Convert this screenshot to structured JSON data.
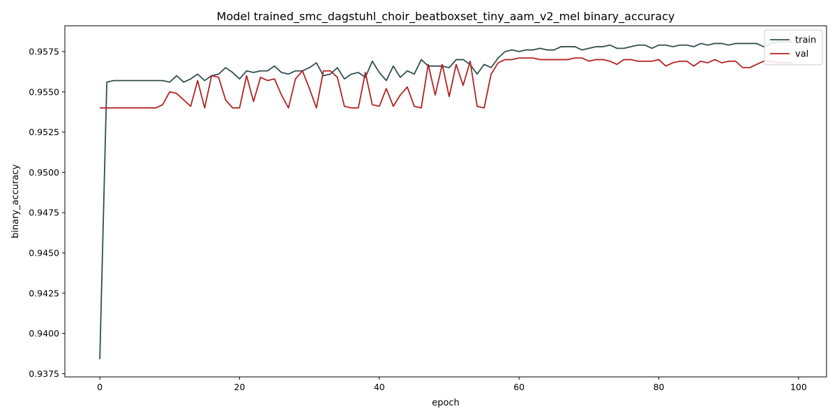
{
  "chart_data": {
    "type": "line",
    "title": "Model trained_smc_dagstuhl_choir_beatboxset_tiny_aam_v2_mel binary_accuracy",
    "xlabel": "epoch",
    "ylabel": "binary_accuracy",
    "xlim": [
      -5,
      104
    ],
    "ylim": [
      0.9373,
      0.9591
    ],
    "xticks": [
      0,
      20,
      40,
      60,
      80,
      100
    ],
    "yticks": [
      0.9375,
      0.94,
      0.9425,
      0.945,
      0.9475,
      0.95,
      0.9525,
      0.955,
      0.9575
    ],
    "ytick_labels": [
      "0.9375",
      "0.9400",
      "0.9425",
      "0.9450",
      "0.9475",
      "0.9500",
      "0.9525",
      "0.9550",
      "0.9575"
    ],
    "xtick_labels": [
      "0",
      "20",
      "40",
      "60",
      "80",
      "100"
    ],
    "grid": false,
    "legend": "top-right",
    "series": [
      {
        "name": "train",
        "color": "#2f4f4f",
        "x": [
          0,
          1,
          2,
          3,
          4,
          5,
          6,
          7,
          8,
          9,
          10,
          11,
          12,
          13,
          14,
          15,
          16,
          17,
          18,
          19,
          20,
          21,
          22,
          23,
          24,
          25,
          26,
          27,
          28,
          29,
          30,
          31,
          32,
          33,
          34,
          35,
          36,
          37,
          38,
          39,
          40,
          41,
          42,
          43,
          44,
          45,
          46,
          47,
          48,
          49,
          50,
          51,
          52,
          53,
          54,
          55,
          56,
          57,
          58,
          59,
          60,
          61,
          62,
          63,
          64,
          65,
          66,
          67,
          68,
          69,
          70,
          71,
          72,
          73,
          74,
          75,
          76,
          77,
          78,
          79,
          80,
          81,
          82,
          83,
          84,
          85,
          86,
          87,
          88,
          89,
          90,
          91,
          92,
          93,
          94,
          95,
          96,
          97,
          98,
          99
        ],
        "values": [
          0.9384,
          0.9556,
          0.9557,
          0.9557,
          0.9557,
          0.9557,
          0.9557,
          0.9557,
          0.9557,
          0.9557,
          0.9556,
          0.956,
          0.9556,
          0.9558,
          0.9561,
          0.9557,
          0.956,
          0.9561,
          0.9565,
          0.9562,
          0.9558,
          0.9563,
          0.9562,
          0.9563,
          0.9563,
          0.9566,
          0.9562,
          0.9561,
          0.9563,
          0.9563,
          0.9565,
          0.9568,
          0.956,
          0.9561,
          0.9565,
          0.9558,
          0.9561,
          0.9562,
          0.9559,
          0.9569,
          0.9562,
          0.9557,
          0.9566,
          0.9559,
          0.9563,
          0.9561,
          0.957,
          0.9566,
          0.9566,
          0.9566,
          0.9565,
          0.957,
          0.957,
          0.9567,
          0.9561,
          0.9567,
          0.9565,
          0.9571,
          0.9575,
          0.9576,
          0.9575,
          0.9576,
          0.9576,
          0.9577,
          0.9576,
          0.9576,
          0.9578,
          0.9578,
          0.9578,
          0.9576,
          0.9577,
          0.9578,
          0.9578,
          0.9579,
          0.9577,
          0.9577,
          0.9578,
          0.9579,
          0.9579,
          0.9577,
          0.9579,
          0.9579,
          0.9578,
          0.9579,
          0.9579,
          0.9578,
          0.958,
          0.9579,
          0.958,
          0.958,
          0.9579,
          0.958,
          0.958,
          0.958,
          0.958,
          0.9578,
          0.958,
          0.9581,
          0.9581,
          0.9581
        ]
      },
      {
        "name": "val",
        "color": "#b22222",
        "x": [
          0,
          1,
          2,
          3,
          4,
          5,
          6,
          7,
          8,
          9,
          10,
          11,
          12,
          13,
          14,
          15,
          16,
          17,
          18,
          19,
          20,
          21,
          22,
          23,
          24,
          25,
          26,
          27,
          28,
          29,
          30,
          31,
          32,
          33,
          34,
          35,
          36,
          37,
          38,
          39,
          40,
          41,
          42,
          43,
          44,
          45,
          46,
          47,
          48,
          49,
          50,
          51,
          52,
          53,
          54,
          55,
          56,
          57,
          58,
          59,
          60,
          61,
          62,
          63,
          64,
          65,
          66,
          67,
          68,
          69,
          70,
          71,
          72,
          73,
          74,
          75,
          76,
          77,
          78,
          79,
          80,
          81,
          82,
          83,
          84,
          85,
          86,
          87,
          88,
          89,
          90,
          91,
          92,
          93,
          94,
          95,
          96,
          97,
          98,
          99
        ],
        "values": [
          0.954,
          0.954,
          0.954,
          0.954,
          0.954,
          0.954,
          0.954,
          0.954,
          0.954,
          0.9542,
          0.955,
          0.9549,
          0.9545,
          0.9541,
          0.9557,
          0.954,
          0.956,
          0.9559,
          0.9545,
          0.954,
          0.954,
          0.956,
          0.9544,
          0.9559,
          0.9557,
          0.9558,
          0.9548,
          0.954,
          0.9558,
          0.9563,
          0.9552,
          0.954,
          0.9563,
          0.9563,
          0.9559,
          0.9541,
          0.954,
          0.954,
          0.9562,
          0.9542,
          0.9541,
          0.9552,
          0.9541,
          0.9548,
          0.9553,
          0.9541,
          0.954,
          0.9567,
          0.9548,
          0.9567,
          0.9547,
          0.9567,
          0.9554,
          0.9569,
          0.9541,
          0.954,
          0.9561,
          0.9568,
          0.957,
          0.957,
          0.9571,
          0.9571,
          0.9571,
          0.957,
          0.957,
          0.957,
          0.957,
          0.957,
          0.9571,
          0.9571,
          0.9569,
          0.957,
          0.957,
          0.9569,
          0.9567,
          0.957,
          0.957,
          0.9569,
          0.9569,
          0.9569,
          0.957,
          0.9566,
          0.9568,
          0.9569,
          0.9569,
          0.9566,
          0.9569,
          0.9568,
          0.957,
          0.9568,
          0.9569,
          0.9569,
          0.9565,
          0.9565,
          0.9567,
          0.9569,
          0.9569,
          0.9568,
          0.9568,
          0.9568
        ]
      }
    ]
  }
}
